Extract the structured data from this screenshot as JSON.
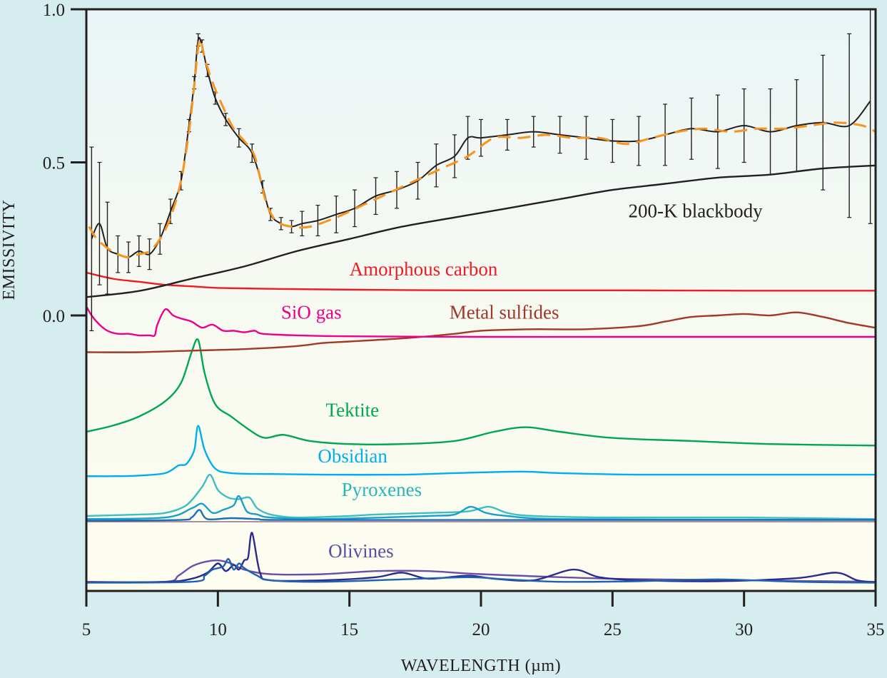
{
  "chart_data": {
    "type": "line",
    "title": "",
    "xlabel": "WAVELENGTH (µm)",
    "ylabel": "EMISSIVITY",
    "xlim": [
      5,
      35
    ],
    "ylim": [
      -0.88,
      1.0
    ],
    "xticks": [
      5,
      10,
      15,
      20,
      25,
      30,
      35
    ],
    "xtick_labels": [
      "5",
      "10",
      "15",
      "20",
      "25",
      "30",
      "35"
    ],
    "yticks": [
      0.0,
      0.5,
      1.0
    ],
    "ytick_labels": [
      "0.0",
      "0.5",
      "1.0"
    ],
    "grid": false,
    "legend": "inline labels",
    "colors": {
      "background_outer": "#d6edf0",
      "plot_top": "#eaf6f7",
      "plot_bottom": "#fdfdf0",
      "data": "#231f20",
      "model_fit": "#f7941d",
      "blackbody": "#231f20",
      "amorphous_carbon": "#ed1c24",
      "sio_gas": "#ec008c",
      "metal_sulfides": "#a0392a",
      "tektite": "#00a651",
      "obsidian": "#00aeef",
      "pyroxenes": "#2bb5b8",
      "olivines": "#5b4ea3"
    },
    "series": [
      {
        "name": "Observed spectrum (with error bars)",
        "style": "data-errorbars",
        "x": [
          5.2,
          5.5,
          5.8,
          6.2,
          6.6,
          7.0,
          7.4,
          7.8,
          8.2,
          8.6,
          8.9,
          9.1,
          9.25,
          9.4,
          9.6,
          9.9,
          10.3,
          10.8,
          11.3,
          11.7,
          12.0,
          12.4,
          12.8,
          13.2,
          13.8,
          14.5,
          15.2,
          16.0,
          16.8,
          17.6,
          18.3,
          19.0,
          19.5,
          20.0,
          21.0,
          22.0,
          23.0,
          24.0,
          25.0,
          26.0,
          27.0,
          28.0,
          29.0,
          30.0,
          31.0,
          32.0,
          33.0,
          34.0,
          34.8
        ],
        "y": [
          0.25,
          0.3,
          0.22,
          0.2,
          0.19,
          0.21,
          0.2,
          0.25,
          0.34,
          0.44,
          0.62,
          0.76,
          0.9,
          0.88,
          0.8,
          0.71,
          0.64,
          0.58,
          0.53,
          0.42,
          0.33,
          0.3,
          0.29,
          0.3,
          0.31,
          0.33,
          0.35,
          0.39,
          0.41,
          0.44,
          0.49,
          0.52,
          0.58,
          0.58,
          0.59,
          0.6,
          0.59,
          0.58,
          0.57,
          0.57,
          0.59,
          0.61,
          0.6,
          0.62,
          0.6,
          0.62,
          0.63,
          0.62,
          0.7
        ],
        "err": [
          0.3,
          0.2,
          0.15,
          0.06,
          0.05,
          0.05,
          0.05,
          0.05,
          0.04,
          0.03,
          0.02,
          0.02,
          0.02,
          0.02,
          0.02,
          0.02,
          0.02,
          0.03,
          0.03,
          0.02,
          0.02,
          0.02,
          0.02,
          0.04,
          0.05,
          0.06,
          0.06,
          0.06,
          0.06,
          0.06,
          0.07,
          0.07,
          0.07,
          0.06,
          0.05,
          0.05,
          0.06,
          0.07,
          0.07,
          0.08,
          0.1,
          0.1,
          0.12,
          0.12,
          0.14,
          0.15,
          0.22,
          0.3,
          0.4
        ]
      },
      {
        "name": "Model fit",
        "style": "dashed",
        "x": [
          5.1,
          5.4,
          5.8,
          6.2,
          6.6,
          7.0,
          7.4,
          7.8,
          8.2,
          8.6,
          8.9,
          9.1,
          9.3,
          9.5,
          9.8,
          10.2,
          10.6,
          11.0,
          11.4,
          11.8,
          12.2,
          12.8,
          13.5,
          14.5,
          15.5,
          16.5,
          17.5,
          18.5,
          19.5,
          20.5,
          21.5,
          22.5,
          23.5,
          24.5,
          25.5,
          26.5,
          27.5,
          28.5,
          29.5,
          30.5,
          31.5,
          32.5,
          33.5,
          34.5,
          35.0
        ],
        "y": [
          0.29,
          0.25,
          0.22,
          0.2,
          0.19,
          0.2,
          0.21,
          0.25,
          0.32,
          0.44,
          0.6,
          0.75,
          0.9,
          0.84,
          0.76,
          0.68,
          0.61,
          0.57,
          0.52,
          0.38,
          0.31,
          0.29,
          0.29,
          0.32,
          0.36,
          0.4,
          0.44,
          0.48,
          0.52,
          0.58,
          0.58,
          0.59,
          0.58,
          0.58,
          0.56,
          0.58,
          0.6,
          0.61,
          0.6,
          0.61,
          0.61,
          0.62,
          0.63,
          0.62,
          0.6
        ]
      },
      {
        "name": "200-K blackbody",
        "style": "solid",
        "x": [
          5,
          7,
          9,
          11,
          13,
          15,
          17,
          19,
          21,
          23,
          25,
          27,
          29,
          31,
          33,
          35
        ],
        "y": [
          0.06,
          0.08,
          0.12,
          0.16,
          0.21,
          0.25,
          0.29,
          0.32,
          0.35,
          0.38,
          0.41,
          0.43,
          0.45,
          0.46,
          0.48,
          0.49
        ]
      },
      {
        "name": "Amorphous carbon",
        "style": "solid",
        "x": [
          5,
          6,
          7,
          8,
          9,
          10,
          12,
          14,
          17,
          20,
          25,
          30,
          35
        ],
        "y": [
          0.14,
          0.12,
          0.11,
          0.1,
          0.095,
          0.09,
          0.087,
          0.085,
          0.083,
          0.082,
          0.082,
          0.081,
          0.081
        ]
      },
      {
        "name": "SiO gas",
        "style": "solid",
        "x": [
          5.0,
          5.2,
          5.5,
          5.8,
          6.2,
          6.6,
          7.0,
          7.4,
          7.6,
          7.7,
          8.0,
          8.3,
          8.6,
          9.0,
          9.4,
          9.8,
          10.2,
          10.6,
          11.0,
          11.4,
          11.7,
          13,
          15,
          20,
          25,
          30,
          35
        ],
        "y": [
          0.03,
          0.0,
          -0.03,
          -0.05,
          -0.06,
          -0.06,
          -0.065,
          -0.065,
          -0.065,
          -0.03,
          0.02,
          0.0,
          -0.01,
          -0.02,
          -0.04,
          -0.03,
          -0.05,
          -0.05,
          -0.055,
          -0.05,
          -0.06,
          -0.065,
          -0.068,
          -0.07,
          -0.07,
          -0.07,
          -0.07
        ]
      },
      {
        "name": "Metal sulfides",
        "style": "solid",
        "x": [
          5,
          7,
          9,
          11,
          13,
          14,
          15,
          17,
          19,
          20,
          22,
          24,
          26,
          27,
          28,
          29,
          30,
          31,
          32,
          33,
          34,
          35
        ],
        "y": [
          -0.12,
          -0.12,
          -0.115,
          -0.11,
          -0.1,
          -0.09,
          -0.085,
          -0.075,
          -0.06,
          -0.05,
          -0.045,
          -0.045,
          -0.035,
          -0.02,
          -0.005,
          0.0,
          0.005,
          0.0,
          0.01,
          -0.005,
          -0.025,
          -0.04
        ]
      },
      {
        "name": "Tektite",
        "style": "solid",
        "x": [
          5,
          6,
          7,
          8,
          8.6,
          9.0,
          9.25,
          9.5,
          9.9,
          10.5,
          11.3,
          11.8,
          12.5,
          13.5,
          15,
          17,
          19,
          20.5,
          21.7,
          23,
          25,
          28,
          31,
          35
        ],
        "y": [
          -0.38,
          -0.36,
          -0.33,
          -0.28,
          -0.22,
          -0.12,
          -0.08,
          -0.19,
          -0.29,
          -0.33,
          -0.38,
          -0.4,
          -0.39,
          -0.41,
          -0.42,
          -0.42,
          -0.41,
          -0.38,
          -0.365,
          -0.38,
          -0.4,
          -0.41,
          -0.42,
          -0.425
        ]
      },
      {
        "name": "Obsidian",
        "style": "solid",
        "x": [
          5,
          6,
          7,
          8,
          8.5,
          8.8,
          9.1,
          9.25,
          9.5,
          9.9,
          10.5,
          12,
          14,
          17,
          19,
          21.5,
          23,
          26,
          30,
          35
        ],
        "y": [
          -0.525,
          -0.525,
          -0.523,
          -0.515,
          -0.49,
          -0.485,
          -0.44,
          -0.36,
          -0.44,
          -0.5,
          -0.515,
          -0.518,
          -0.52,
          -0.52,
          -0.515,
          -0.51,
          -0.515,
          -0.52,
          -0.52,
          -0.52
        ]
      },
      {
        "name": "Pyroxenes",
        "style": "multi",
        "members": [
          {
            "x": [
              5,
              7,
              8,
              8.8,
              9.4,
              9.7,
              10.0,
              10.4,
              10.8,
              11.2,
              11.5,
              12,
              13,
              15,
              16,
              18,
              19.5,
              20.3,
              21,
              22,
              25,
              30,
              35
            ],
            "y": [
              -0.655,
              -0.65,
              -0.645,
              -0.62,
              -0.56,
              -0.52,
              -0.57,
              -0.595,
              -0.6,
              -0.595,
              -0.63,
              -0.65,
              -0.66,
              -0.655,
              -0.65,
              -0.645,
              -0.64,
              -0.625,
              -0.645,
              -0.655,
              -0.66,
              -0.66,
              -0.665
            ]
          },
          {
            "x": [
              5,
              8,
              9.0,
              9.4,
              9.8,
              10.2,
              10.6,
              10.8,
              11.1,
              11.5,
              12,
              14,
              18,
              19.0,
              19.6,
              20.2,
              21,
              23,
              30,
              35
            ],
            "y": [
              -0.665,
              -0.66,
              -0.63,
              -0.615,
              -0.645,
              -0.635,
              -0.62,
              -0.59,
              -0.64,
              -0.65,
              -0.66,
              -0.665,
              -0.655,
              -0.65,
              -0.625,
              -0.645,
              -0.655,
              -0.665,
              -0.667,
              -0.667
            ]
          },
          {
            "x": [
              5,
              8.5,
              9.0,
              9.3,
              9.6,
              10.5,
              11.5,
              12.5,
              20,
              35
            ],
            "y": [
              -0.67,
              -0.668,
              -0.66,
              -0.635,
              -0.665,
              -0.662,
              -0.665,
              -0.668,
              -0.668,
              -0.668
            ]
          }
        ]
      },
      {
        "name": "Olivines",
        "style": "multi",
        "members": [
          {
            "x": [
              5,
              8,
              8.5,
              9.0,
              9.5,
              10,
              10.5,
              11,
              12,
              14,
              16,
              18,
              20,
              25,
              30,
              35
            ],
            "y": [
              -0.87,
              -0.87,
              -0.85,
              -0.82,
              -0.805,
              -0.8,
              -0.81,
              -0.83,
              -0.845,
              -0.845,
              -0.835,
              -0.835,
              -0.845,
              -0.86,
              -0.865,
              -0.87
            ]
          },
          {
            "x": [
              5,
              8,
              9,
              9.6,
              10.0,
              10.3,
              10.6,
              10.8,
              11.0,
              11.15,
              11.3,
              11.6,
              12,
              14,
              16,
              17,
              18,
              19.5,
              20.5,
              22,
              23.5,
              24.5,
              26,
              29,
              32,
              33.5,
              34.3,
              35
            ],
            "y": [
              -0.872,
              -0.87,
              -0.86,
              -0.84,
              -0.81,
              -0.835,
              -0.815,
              -0.83,
              -0.8,
              -0.79,
              -0.71,
              -0.84,
              -0.865,
              -0.865,
              -0.855,
              -0.84,
              -0.86,
              -0.85,
              -0.86,
              -0.865,
              -0.83,
              -0.855,
              -0.865,
              -0.868,
              -0.858,
              -0.84,
              -0.865,
              -0.872
            ]
          },
          {
            "x": [
              5,
              9,
              9.5,
              9.8,
              10.2,
              10.4,
              10.6,
              10.8,
              11.0,
              11.5,
              12.0,
              14,
              17,
              19.5,
              21,
              23,
              26,
              29,
              32,
              35
            ],
            "y": [
              -0.873,
              -0.87,
              -0.85,
              -0.83,
              -0.82,
              -0.795,
              -0.83,
              -0.81,
              -0.825,
              -0.85,
              -0.865,
              -0.87,
              -0.862,
              -0.855,
              -0.862,
              -0.87,
              -0.868,
              -0.862,
              -0.87,
              -0.873
            ]
          }
        ]
      }
    ],
    "annotations": [
      {
        "text": "200-K blackbody",
        "series": "200-K blackbody",
        "x": 25.6,
        "y": 0.32
      },
      {
        "text": "Amorphous carbon",
        "series": "Amorphous carbon",
        "x": 15.0,
        "y": 0.13
      },
      {
        "text": "SiO gas",
        "series": "SiO gas",
        "x": 12.4,
        "y": -0.01
      },
      {
        "text": "Metal sulfides",
        "series": "Metal sulfides",
        "x": 18.8,
        "y": -0.01
      },
      {
        "text": "Tektite",
        "series": "Tektite",
        "x": 14.1,
        "y": -0.33
      },
      {
        "text": "Obsidian",
        "series": "Obsidian",
        "x": 13.8,
        "y": -0.48
      },
      {
        "text": "Pyroxenes",
        "series": "Pyroxenes",
        "x": 14.7,
        "y": -0.59
      },
      {
        "text": "Olivines",
        "series": "Olivines",
        "x": 14.2,
        "y": -0.79
      }
    ]
  }
}
